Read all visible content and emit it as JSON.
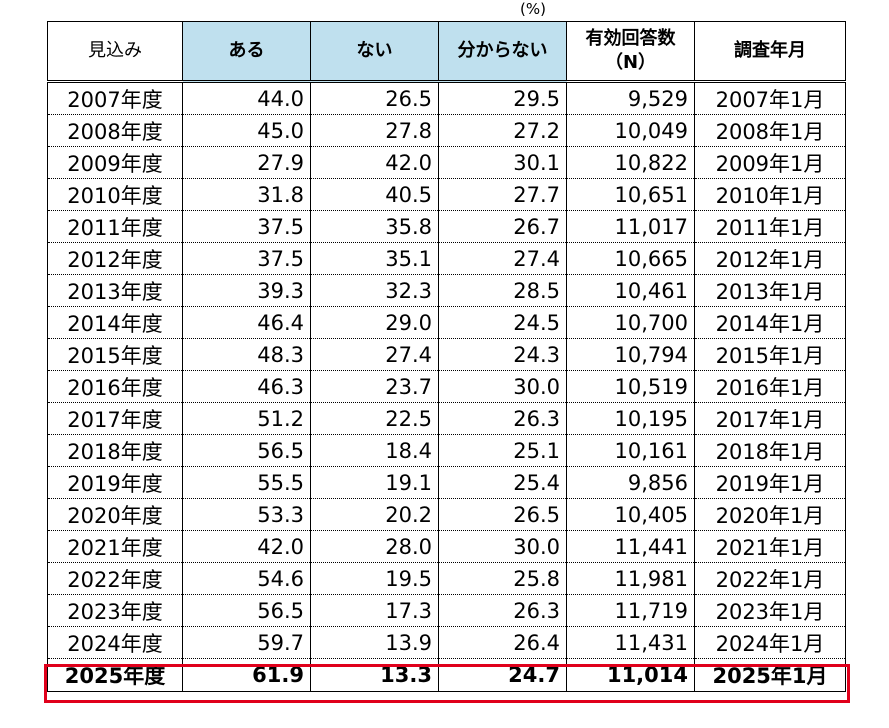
{
  "unit": "(%)",
  "headers": {
    "col0": "見込み",
    "col1": "ある",
    "col2": "ない",
    "col3": "分からない",
    "col4_line1": "有効回答数",
    "col4_line2": "（N）",
    "col5": "調査年月"
  },
  "rows": [
    [
      "2007年度",
      "44.0",
      "26.5",
      "29.5",
      "9,529",
      "2007年1月"
    ],
    [
      "2008年度",
      "45.0",
      "27.8",
      "27.2",
      "10,049",
      "2008年1月"
    ],
    [
      "2009年度",
      "27.9",
      "42.0",
      "30.1",
      "10,822",
      "2009年1月"
    ],
    [
      "2010年度",
      "31.8",
      "40.5",
      "27.7",
      "10,651",
      "2010年1月"
    ],
    [
      "2011年度",
      "37.5",
      "35.8",
      "26.7",
      "11,017",
      "2011年1月"
    ],
    [
      "2012年度",
      "37.5",
      "35.1",
      "27.4",
      "10,665",
      "2012年1月"
    ],
    [
      "2013年度",
      "39.3",
      "32.3",
      "28.5",
      "10,461",
      "2013年1月"
    ],
    [
      "2014年度",
      "46.4",
      "29.0",
      "24.5",
      "10,700",
      "2014年1月"
    ],
    [
      "2015年度",
      "48.3",
      "27.4",
      "24.3",
      "10,794",
      "2015年1月"
    ],
    [
      "2016年度",
      "46.3",
      "23.7",
      "30.0",
      "10,519",
      "2016年1月"
    ],
    [
      "2017年度",
      "51.2",
      "22.5",
      "26.3",
      "10,195",
      "2017年1月"
    ],
    [
      "2018年度",
      "56.5",
      "18.4",
      "25.1",
      "10,161",
      "2018年1月"
    ],
    [
      "2019年度",
      "55.5",
      "19.1",
      "25.4",
      "9,856",
      "2019年1月"
    ],
    [
      "2020年度",
      "53.3",
      "20.2",
      "26.5",
      "10,405",
      "2020年1月"
    ],
    [
      "2021年度",
      "42.0",
      "28.0",
      "30.0",
      "11,441",
      "2021年1月"
    ],
    [
      "2022年度",
      "54.6",
      "19.5",
      "25.8",
      "11,981",
      "2022年1月"
    ],
    [
      "2023年度",
      "56.5",
      "17.3",
      "26.3",
      "11,719",
      "2023年1月"
    ],
    [
      "2024年度",
      "59.7",
      "13.9",
      "26.4",
      "11,431",
      "2024年1月"
    ],
    [
      "2025年度",
      "61.9",
      "13.3",
      "24.7",
      "11,014",
      "2025年1月"
    ]
  ],
  "colors": {
    "header_highlight": "#bfe0ee",
    "highlight_border": "#e0001b"
  }
}
